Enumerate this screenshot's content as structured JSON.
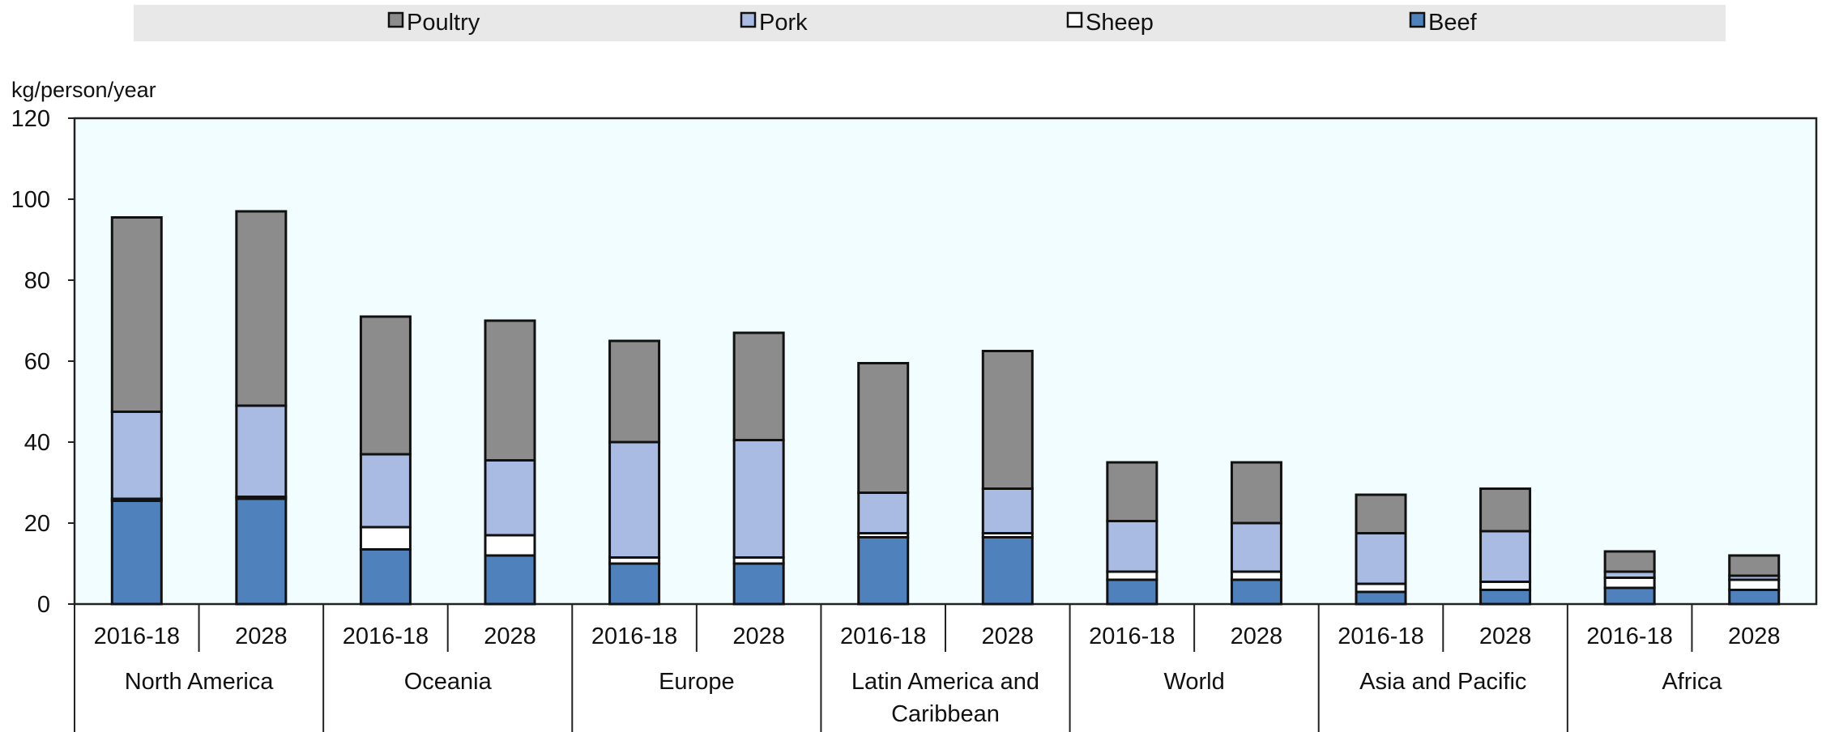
{
  "chart_data": {
    "type": "bar",
    "stacked": true,
    "ylabel": "kg/person/year",
    "ylim": [
      0,
      120
    ],
    "yticks": [
      0,
      20,
      40,
      60,
      80,
      100,
      120
    ],
    "legend": {
      "placement": "top",
      "entries": [
        "Poultry",
        "Pork",
        "Sheep",
        "Beef"
      ]
    },
    "groups": [
      "North America",
      "Oceania",
      "Europe",
      "Latin America and Caribbean",
      "World",
      "Asia and Pacific",
      "Africa"
    ],
    "periods": [
      "2016-18",
      "2028"
    ],
    "categories": [
      "North America 2016-18",
      "North America 2028",
      "Oceania 2016-18",
      "Oceania 2028",
      "Europe 2016-18",
      "Europe 2028",
      "Latin America and Caribbean 2016-18",
      "Latin America and Caribbean 2028",
      "World 2016-18",
      "World 2028",
      "Asia and Pacific 2016-18",
      "Asia and Pacific 2028",
      "Africa 2016-18",
      "Africa 2028"
    ],
    "series": [
      {
        "name": "Beef",
        "color": "#4f81bd",
        "values": [
          25.5,
          26.0,
          13.5,
          12.0,
          10.0,
          10.0,
          16.5,
          16.5,
          6.0,
          6.0,
          3.0,
          3.5,
          4.0,
          3.5
        ]
      },
      {
        "name": "Sheep",
        "color": "#ffffff",
        "values": [
          0.5,
          0.5,
          5.5,
          5.0,
          1.5,
          1.5,
          1.0,
          1.0,
          2.0,
          2.0,
          2.0,
          2.0,
          2.5,
          2.5
        ]
      },
      {
        "name": "Pork",
        "color": "#a9bbe3",
        "values": [
          21.5,
          22.5,
          18.0,
          18.5,
          28.5,
          29.0,
          10.0,
          11.0,
          12.5,
          12.0,
          12.5,
          12.5,
          1.5,
          1.0
        ]
      },
      {
        "name": "Poultry",
        "color": "#8c8c8c",
        "values": [
          48.0,
          48.0,
          34.0,
          34.5,
          25.0,
          26.5,
          32.0,
          34.0,
          14.5,
          15.0,
          9.5,
          10.5,
          5.0,
          5.0
        ]
      }
    ],
    "grid": false,
    "plot_background": "#f2fdff",
    "legend_background": "#e8e8e8"
  }
}
